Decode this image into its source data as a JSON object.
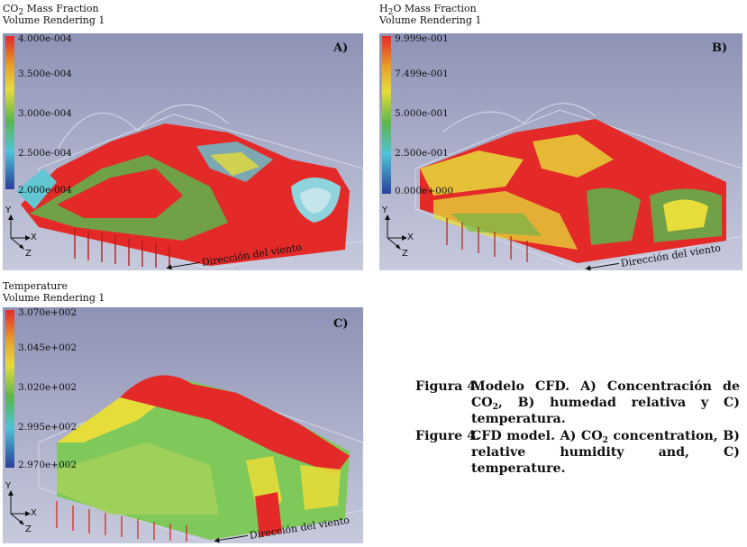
{
  "panels": [
    {
      "id": "A",
      "title_main": "CO",
      "title_sub": "2",
      "title_rest": " Mass Fraction",
      "subtitle": "Volume Rendering 1",
      "letter": "A)",
      "ticks": [
        "4.000e-004",
        "3.500e-004",
        "3.000e-004",
        "2.500e-004",
        "2.000e-004"
      ],
      "wind": "Dirección del viento",
      "axis_y": "Y",
      "axis_x": "X",
      "axis_z": "Z"
    },
    {
      "id": "B",
      "title_main": "H",
      "title_sub": "2",
      "title_rest": "O Mass Fraction",
      "subtitle": "Volume Rendering 1",
      "letter": "B)",
      "ticks": [
        "9.999e-001",
        "7.499e-001",
        "5.000e-001",
        "2.500e-001",
        "0.000e+000"
      ],
      "wind": "Dirección del viento",
      "axis_y": "Y",
      "axis_x": "X",
      "axis_z": "Z"
    },
    {
      "id": "C",
      "title_main": "Temperature",
      "title_sub": "",
      "title_rest": "",
      "subtitle": "Volume Rendering 1",
      "letter": "C)",
      "ticks": [
        "3.070e+002",
        "3.045e+002",
        "3.020e+002",
        "2.995e+002",
        "2.970e+002"
      ],
      "wind": "Dirección del viento",
      "axis_y": "Y",
      "axis_x": "X",
      "axis_z": "Z"
    }
  ],
  "caption": {
    "es_label": "Figura 4.",
    "es_part1": "Modelo CFD. A) Concentración de CO",
    "es_sub": "2",
    "es_part2": ", B) humedad relativa y C) temperatura.",
    "en_label": "Figure 4.",
    "en_part1": "CFD model. A) CO",
    "en_sub": "2",
    "en_part2": " concentration, B) relative humidity and, C) temperature."
  },
  "colors": {
    "background": "#8f94b8",
    "red": "#e8262a",
    "yellow": "#e6dc3a",
    "green": "#5cb84a",
    "cyan": "#4fc3d6",
    "blue": "#2a3f9a"
  }
}
